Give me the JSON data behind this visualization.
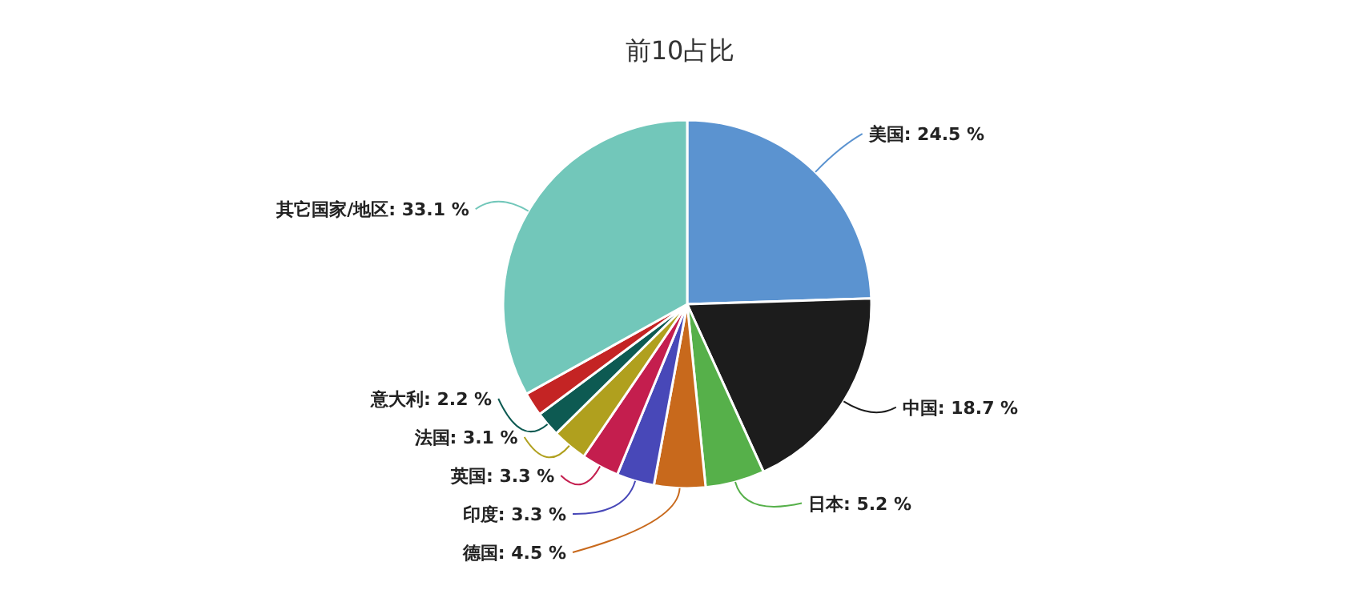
{
  "chart_data": {
    "type": "pie",
    "title": "前10占比",
    "categories": [
      "美国",
      "中国",
      "日本",
      "德国",
      "印度",
      "英国",
      "法国",
      "意大利",
      null,
      "其它国家/地区"
    ],
    "values": [
      24.5,
      18.7,
      5.2,
      4.5,
      3.3,
      3.3,
      3.1,
      2.2,
      2.1,
      33.1
    ],
    "colors": [
      "#5b93d0",
      "#1c1c1c",
      "#56b04a",
      "#c8691c",
      "#4848b8",
      "#c41e4e",
      "#b0a01e",
      "#0d5a52",
      "#c42424",
      "#72c7ba"
    ],
    "value_labels": [
      "24.5 %",
      "18.7 %",
      "5.2 %",
      "4.5 %",
      "3.3 %",
      "3.3 %",
      "3.1 %",
      "2.2 %",
      null,
      "33.1 %"
    ]
  }
}
